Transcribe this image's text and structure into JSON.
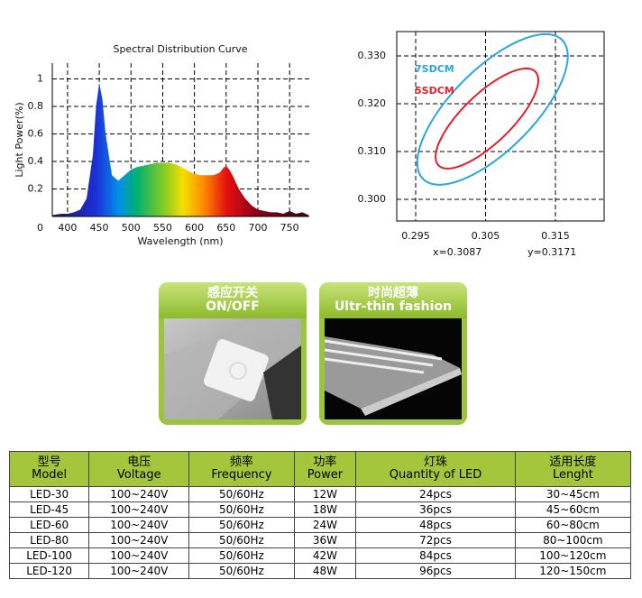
{
  "chart_data": [
    {
      "type": "area",
      "title": "Spectral Distribution Curve",
      "xlabel": "Wavelength (nm)",
      "ylabel": "Light Power(%)",
      "x": [
        376,
        390,
        400,
        410,
        420,
        430,
        440,
        445,
        450,
        455,
        460,
        470,
        480,
        490,
        500,
        510,
        520,
        530,
        540,
        550,
        560,
        570,
        580,
        590,
        600,
        610,
        620,
        630,
        640,
        645,
        650,
        655,
        660,
        670,
        680,
        690,
        700,
        710,
        720,
        730,
        740,
        750,
        760,
        770,
        780
      ],
      "values": [
        0.01,
        0.02,
        0.02,
        0.03,
        0.05,
        0.13,
        0.45,
        0.8,
        0.97,
        0.85,
        0.6,
        0.3,
        0.26,
        0.3,
        0.34,
        0.36,
        0.37,
        0.38,
        0.39,
        0.39,
        0.39,
        0.38,
        0.36,
        0.33,
        0.31,
        0.3,
        0.3,
        0.3,
        0.32,
        0.35,
        0.37,
        0.34,
        0.3,
        0.2,
        0.13,
        0.08,
        0.05,
        0.04,
        0.03,
        0.03,
        0.02,
        0.04,
        0.02,
        0.03,
        0.01
      ],
      "xlim": [
        376,
        781
      ],
      "xticks": [
        400,
        450,
        500,
        550,
        600,
        650,
        700,
        750
      ],
      "ylim": [
        0,
        1.115
      ],
      "yticks": [
        0,
        0.2,
        0.4,
        0.6,
        0.8,
        1
      ],
      "grid": true
    },
    {
      "type": "ellipse",
      "series": [
        {
          "name": "7SDCM",
          "color": "#29a6df",
          "center": [
            0.306,
            0.3188
          ],
          "ax": 0.01077,
          "ay": 0.01575,
          "phase": 45
        },
        {
          "name": "5SDCM",
          "color": "#e3202a",
          "center": [
            0.3052,
            0.3169
          ],
          "ax": 0.00735,
          "ay": 0.01047,
          "phase": 40
        }
      ],
      "xlim": [
        0.29229,
        0.32197
      ],
      "xticks": [
        0.295,
        0.305,
        0.315
      ],
      "ylim": [
        0.29547,
        0.33509
      ],
      "yticks": [
        {
          "value": 0.3,
          "label": "0.300"
        },
        {
          "value": 0.31,
          "label": "0.310"
        },
        {
          "value": 0.32,
          "label": "0.320"
        },
        {
          "value": 0.33,
          "label": "0.330"
        }
      ],
      "grid": true,
      "annotations": [
        "x=0.3087",
        "y=0.3171"
      ]
    }
  ],
  "features": [
    {
      "title": "感应开关",
      "subtitle": "ON/OFF"
    },
    {
      "title": "时尚超薄",
      "subtitle": "Ultr-thin fashion"
    }
  ],
  "table": {
    "header": [
      [
        "型号",
        "Model"
      ],
      [
        "电压",
        "Voltage"
      ],
      [
        "频率",
        "Frequency"
      ],
      [
        "功率",
        "Power"
      ],
      [
        "灯珠",
        "Quantity of LED"
      ],
      [
        "适用长度",
        "Lenght"
      ]
    ],
    "rows": [
      [
        "LED-30",
        "100~240V",
        "50/60Hz",
        "12W",
        "24pcs",
        "30~45cm"
      ],
      [
        "LED-45",
        "100~240V",
        "50/60Hz",
        "18W",
        "36pcs",
        "45~60cm"
      ],
      [
        "LED-60",
        "100~240V",
        "50/60Hz",
        "24W",
        "48pcs",
        "60~80cm"
      ],
      [
        "LED-80",
        "100~240V",
        "50/60Hz",
        "36W",
        "72pcs",
        "80~100cm"
      ],
      [
        "LED-100",
        "100~240V",
        "50/60Hz",
        "42W",
        "84pcs",
        "100~120cm"
      ],
      [
        "LED-120",
        "100~240V",
        "50/60Hz",
        "48W",
        "96pcs",
        "120~150cm"
      ]
    ]
  }
}
